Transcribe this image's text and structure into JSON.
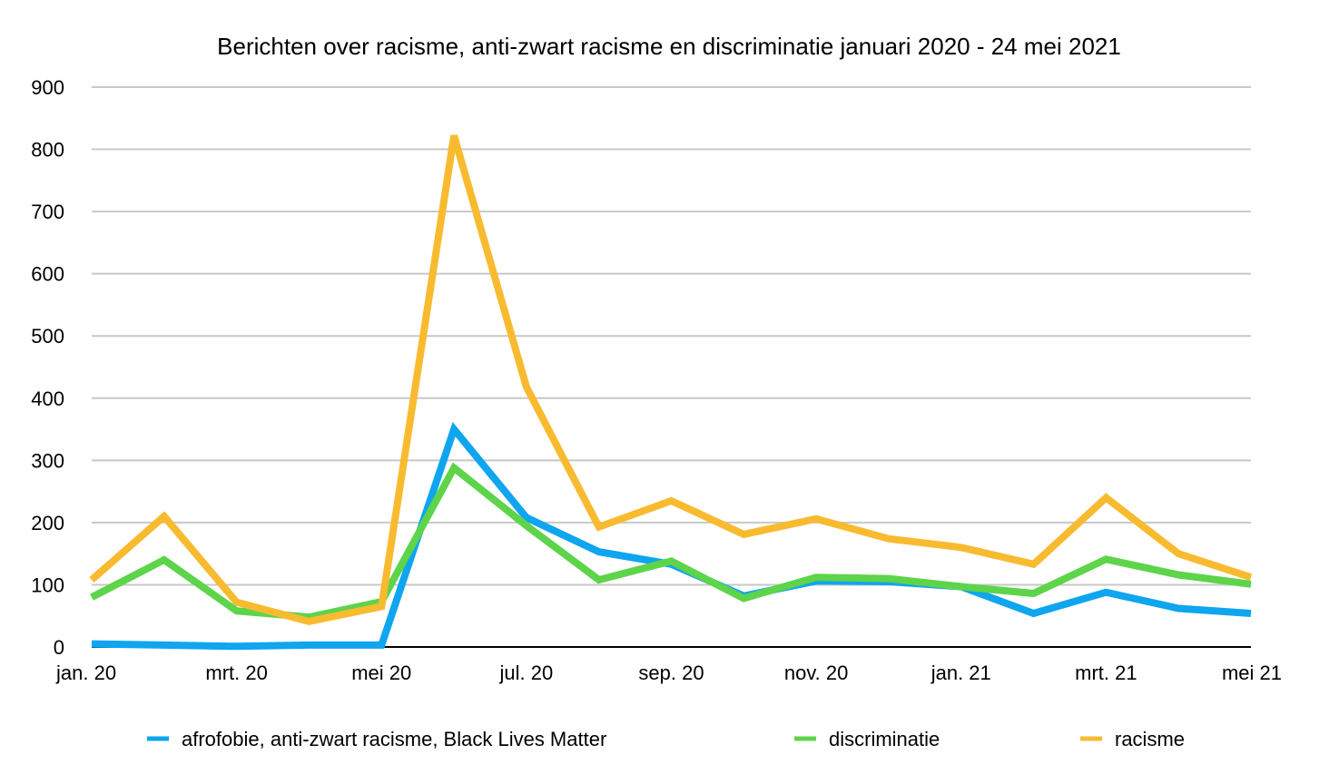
{
  "chart_data": {
    "type": "line",
    "title": "Berichten over racisme, anti-zwart racisme en discriminatie januari 2020 - 24 mei 2021",
    "xlabel": "",
    "ylabel": "",
    "ylim": [
      0,
      900
    ],
    "yticks": [
      "0",
      "100",
      "200",
      "300",
      "400",
      "500",
      "600",
      "700",
      "800",
      "900"
    ],
    "x": [
      "jan. 20",
      "feb. 20",
      "mrt. 20",
      "apr. 20",
      "mei 20",
      "jun. 20",
      "jul. 20",
      "aug. 20",
      "sep. 20",
      "okt. 20",
      "nov. 20",
      "dec. 20",
      "jan. 21",
      "feb. 21",
      "mrt. 21",
      "apr. 21",
      "mei 21"
    ],
    "xtick_labels": [
      "jan. 20",
      "",
      "mrt. 20",
      "",
      "mei 20",
      "",
      "jul. 20",
      "",
      "sep. 20",
      "",
      "nov. 20",
      "",
      "jan. 21",
      "",
      "mrt. 21",
      "",
      "mei 21"
    ],
    "grid": true,
    "legend_position": "bottom",
    "series": [
      {
        "name": "afrofobie, anti-zwart racisme, Black Lives Matter",
        "color": "#0fa5ef",
        "values": [
          5,
          3,
          1,
          3,
          3,
          350,
          208,
          153,
          133,
          82,
          106,
          105,
          97,
          54,
          88,
          62,
          54
        ]
      },
      {
        "name": "discriminatie",
        "color": "#5dd44a",
        "values": [
          80,
          140,
          58,
          48,
          73,
          288,
          195,
          108,
          138,
          78,
          112,
          110,
          97,
          86,
          141,
          116,
          101
        ]
      },
      {
        "name": "racisme",
        "color": "#f8bb30",
        "values": [
          108,
          210,
          72,
          41,
          65,
          822,
          418,
          193,
          235,
          181,
          206,
          174,
          160,
          133,
          240,
          150,
          112
        ]
      }
    ]
  }
}
